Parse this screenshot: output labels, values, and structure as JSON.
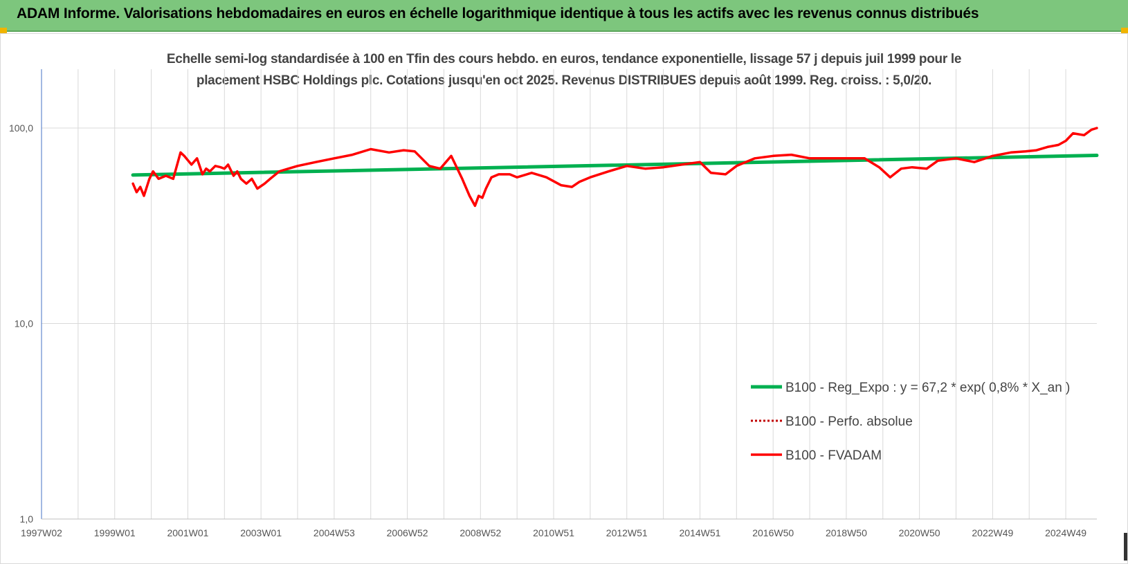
{
  "header": {
    "title": "ADAM Informe. Valorisations hebdomadaires en euros en échelle logarithmique identique à tous les actifs avec les revenus connus distribués"
  },
  "colors": {
    "banner": "#7dc67d",
    "trend": "#00b050",
    "fvadam": "#ff0000",
    "perfo": "#c00000",
    "grid": "#d9d9d9"
  },
  "chart_data": {
    "type": "line",
    "title_line1": "Echelle semi-log standardisée à 100 en Tfin des cours hebdo. en euros, tendance exponentielle, lissage 57 j depuis juil 1999 pour le",
    "title_line2": "placement HSBC Holdings plc. Cotations jusqu'en oct 2025. Revenus DISTRIBUES depuis août 1999. Reg. croiss. : 5,0/20.",
    "y_scale": "log",
    "ylim": [
      1,
      200
    ],
    "y_ticks": [
      {
        "value": 1,
        "label": "1,0"
      },
      {
        "value": 10,
        "label": "10,0"
      },
      {
        "value": 100,
        "label": "100,0"
      }
    ],
    "x_range": [
      1997.0,
      2025.85
    ],
    "x_ticks": [
      {
        "x": 1997.0,
        "label": "1997W02"
      },
      {
        "x": 1999.0,
        "label": "1999W01"
      },
      {
        "x": 2001.0,
        "label": "2001W01"
      },
      {
        "x": 2003.0,
        "label": "2003W01"
      },
      {
        "x": 2005.0,
        "label": "2004W53"
      },
      {
        "x": 2007.0,
        "label": "2006W52"
      },
      {
        "x": 2009.0,
        "label": "2008W52"
      },
      {
        "x": 2011.0,
        "label": "2010W51"
      },
      {
        "x": 2013.0,
        "label": "2012W51"
      },
      {
        "x": 2015.0,
        "label": "2014W51"
      },
      {
        "x": 2017.0,
        "label": "2016W50"
      },
      {
        "x": 2019.0,
        "label": "2018W50"
      },
      {
        "x": 2021.0,
        "label": "2020W50"
      },
      {
        "x": 2023.0,
        "label": "2022W49"
      },
      {
        "x": 2025.0,
        "label": "2024W49"
      }
    ],
    "grid": true,
    "legend_position": "right",
    "series": [
      {
        "name": "B100 - Reg_Expo : y = 67,2 * exp( 0,8% *  X_an )",
        "style": "solid-thick",
        "x": [
          1999.5,
          2025.85
        ],
        "y": [
          57.5,
          72.5
        ]
      },
      {
        "name": "B100 - Perfo. absolue",
        "style": "dotted",
        "x": [],
        "y": []
      },
      {
        "name": "B100 - FVADAM",
        "style": "solid",
        "x": [
          1999.5,
          1999.6,
          1999.7,
          1999.8,
          1999.95,
          2000.05,
          2000.2,
          2000.4,
          2000.6,
          2000.8,
          2000.9,
          2001.1,
          2001.25,
          2001.4,
          2001.5,
          2001.6,
          2001.75,
          2001.9,
          2002.0,
          2002.1,
          2002.25,
          2002.35,
          2002.45,
          2002.6,
          2002.75,
          2002.9,
          2003.1,
          2003.25,
          2003.5,
          2003.75,
          2004.0,
          2004.5,
          2005.0,
          2005.5,
          2006.0,
          2006.5,
          2006.9,
          2007.2,
          2007.6,
          2007.9,
          2008.2,
          2008.5,
          2008.7,
          2008.85,
          2008.95,
          2009.05,
          2009.15,
          2009.3,
          2009.5,
          2009.8,
          2010.0,
          2010.4,
          2010.8,
          2011.2,
          2011.5,
          2011.7,
          2012.0,
          2012.5,
          2013.0,
          2013.5,
          2014.0,
          2014.5,
          2015.0,
          2015.3,
          2015.7,
          2016.0,
          2016.5,
          2017.0,
          2017.5,
          2018.0,
          2018.5,
          2019.0,
          2019.5,
          2019.9,
          2020.2,
          2020.5,
          2020.8,
          2021.2,
          2021.5,
          2022.0,
          2022.5,
          2023.0,
          2023.5,
          2023.9,
          2024.2,
          2024.5,
          2024.8,
          2025.0,
          2025.2,
          2025.5,
          2025.7,
          2025.85
        ],
        "y": [
          52,
          47,
          50,
          45,
          55,
          60,
          55,
          57,
          55,
          75,
          72,
          65,
          70,
          58,
          62,
          60,
          64,
          63,
          62,
          65,
          57,
          60,
          55,
          52,
          55,
          49,
          52,
          55,
          60,
          62,
          64,
          67,
          70,
          73,
          78,
          75,
          77,
          76,
          64,
          62,
          72,
          55,
          45,
          40,
          45,
          44,
          49,
          56,
          58,
          58,
          56,
          59,
          56,
          51,
          50,
          53,
          56,
          60,
          64,
          62,
          63,
          65,
          67,
          59,
          58,
          64,
          70,
          72,
          73,
          70,
          70,
          70,
          70,
          63,
          56,
          62,
          63,
          62,
          68,
          70,
          67,
          72,
          75,
          76,
          77,
          80,
          82,
          86,
          94,
          92,
          98,
          100
        ]
      }
    ]
  }
}
